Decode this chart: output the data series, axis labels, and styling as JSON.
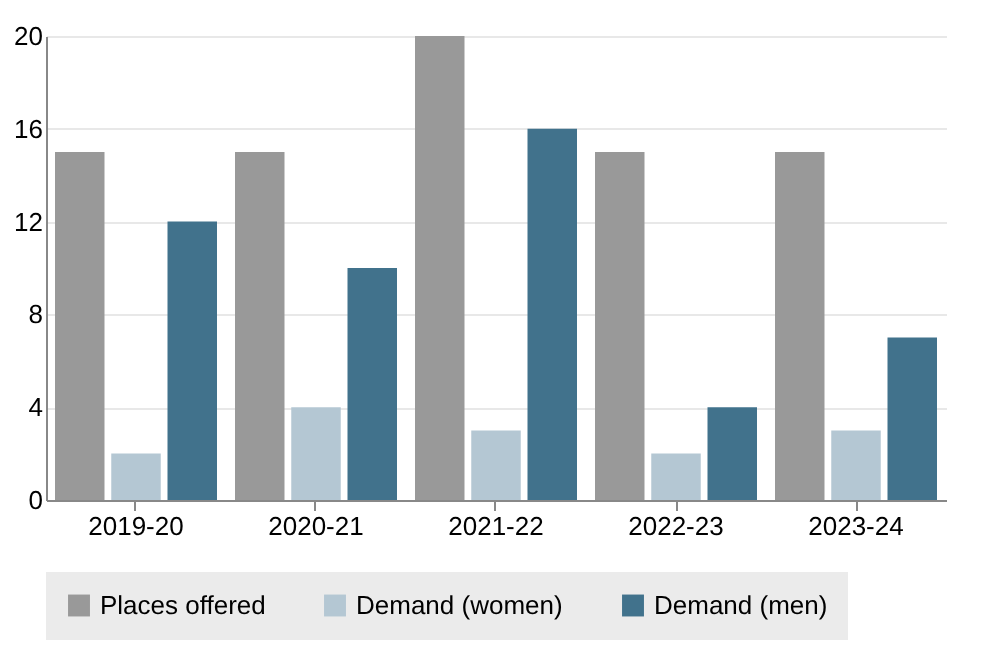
{
  "chart_data": {
    "type": "bar",
    "categories": [
      "2019-20",
      "2020-21",
      "2021-22",
      "2022-23",
      "2023-24"
    ],
    "series": [
      {
        "name": "Places offered",
        "color": "#999999",
        "values": [
          15,
          15,
          20,
          15,
          15
        ]
      },
      {
        "name": "Demand (women)",
        "color": "#b4c7d3",
        "values": [
          2,
          4,
          3,
          2,
          3
        ]
      },
      {
        "name": "Demand (men)",
        "color": "#41728c",
        "values": [
          12,
          10,
          16,
          4,
          7
        ]
      }
    ],
    "ylim": [
      0,
      20
    ],
    "yticks": [
      0,
      4,
      8,
      12,
      16,
      20
    ],
    "grid": "y",
    "legend": "bottom"
  }
}
